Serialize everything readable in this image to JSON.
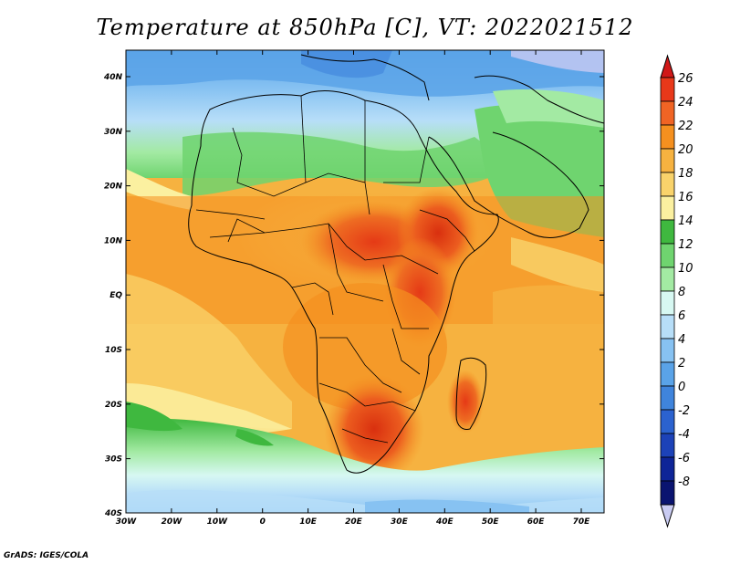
{
  "title": "Temperature at 850hPa [C], VT: 2022021512",
  "credit": "GrADS: IGES/COLA",
  "map": {
    "lon_ticks": [
      "30W",
      "20W",
      "10W",
      "0",
      "10E",
      "20E",
      "30E",
      "40E",
      "50E",
      "60E",
      "70E"
    ],
    "lat_ticks": [
      "40N",
      "30N",
      "20N",
      "10N",
      "EQ",
      "10S",
      "20S",
      "30S",
      "40S"
    ]
  },
  "colorbar": {
    "labels": [
      "26",
      "24",
      "22",
      "20",
      "18",
      "16",
      "14",
      "12",
      "10",
      "8",
      "6",
      "4",
      "2",
      "0",
      "-2",
      "-4",
      "-6",
      "-8"
    ],
    "colors": [
      "#e8381a",
      "#f06424",
      "#f5901f",
      "#f6b240",
      "#f9d36b",
      "#fbf0a0",
      "#3fb83f",
      "#6fd46f",
      "#a3eaa3",
      "#d7f8f2",
      "#b7def8",
      "#87c2f2",
      "#5aa3e8",
      "#3f84dc",
      "#2b62cf",
      "#1c42b8",
      "#0e2497",
      "#0a1470"
    ],
    "top_arrow_color": "#d01818",
    "bottom_arrow_color": "#c9cbf2"
  }
}
